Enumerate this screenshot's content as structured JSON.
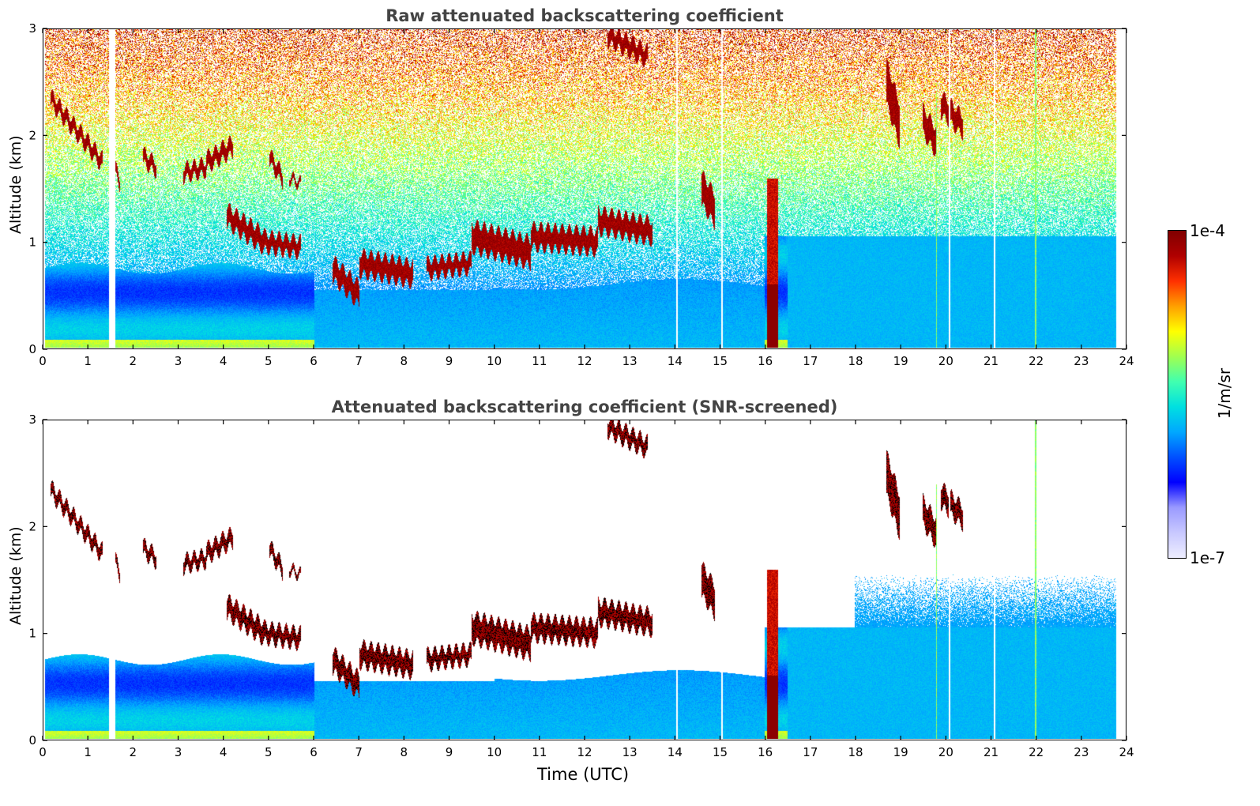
{
  "chart_data": [
    {
      "type": "heatmap",
      "title": "Raw attenuated backscattering coefficient",
      "ylabel": "Altitude (km)",
      "xlabel": "",
      "xlim": [
        0,
        24
      ],
      "ylim": [
        0,
        3
      ],
      "xticks": [
        "0",
        "1",
        "2",
        "3",
        "4",
        "5",
        "6",
        "7",
        "8",
        "9",
        "10",
        "11",
        "12",
        "13",
        "14",
        "15",
        "16",
        "17",
        "18",
        "19",
        "20",
        "21",
        "22",
        "23",
        "24"
      ],
      "yticks": [
        "0",
        "1",
        "2",
        "3"
      ],
      "screened": false
    },
    {
      "type": "heatmap",
      "title": "Attenuated backscattering coefficient (SNR-screened)",
      "ylabel": "Altitude (km)",
      "xlabel": "Time (UTC)",
      "xlim": [
        0,
        24
      ],
      "ylim": [
        0,
        3
      ],
      "xticks": [
        "0",
        "1",
        "2",
        "3",
        "4",
        "5",
        "6",
        "7",
        "8",
        "9",
        "10",
        "11",
        "12",
        "13",
        "14",
        "15",
        "16",
        "17",
        "18",
        "19",
        "20",
        "21",
        "22",
        "23",
        "24"
      ],
      "yticks": [
        "0",
        "1",
        "2",
        "3"
      ],
      "screened": true
    }
  ],
  "colorbar": {
    "max_label": "1e-4",
    "min_label": "1e-7",
    "unit_label": "1/m/sr",
    "colors": [
      "#eeeeff",
      "#c8c8ff",
      "#9a9aff",
      "#0000ff",
      "#0050ff",
      "#00a8ff",
      "#00e0e0",
      "#40ffb0",
      "#a0ff50",
      "#ffff00",
      "#ffa000",
      "#ff3000",
      "#b00000",
      "#800000"
    ]
  }
}
